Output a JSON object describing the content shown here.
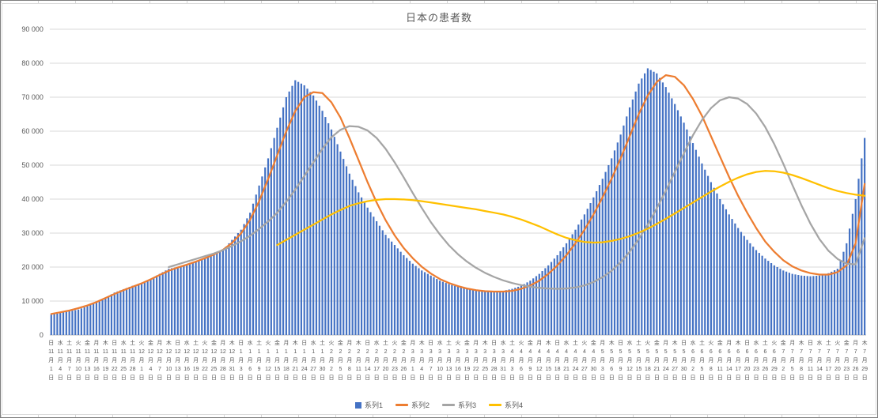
{
  "chart_title": "日本の患者数",
  "chart_data": {
    "type": "bar",
    "title": "日本の患者数",
    "xlabel": "",
    "ylabel": "",
    "grid": true,
    "legend_position": "bottom",
    "x_label_interval_days": 3,
    "y_axis": {
      "min": 0,
      "max": 90000,
      "step": 10000,
      "tick_labels": [
        "0",
        "10 000",
        "20 000",
        "30 000",
        "40 000",
        "50 000",
        "60 000",
        "70 000",
        "80 000",
        "90 000"
      ]
    },
    "categories": [
      [
        "日",
        "11月",
        "1日"
      ],
      [
        "水",
        "11月",
        "4日"
      ],
      [
        "土",
        "11月",
        "7日"
      ],
      [
        "火",
        "11月",
        "10日"
      ],
      [
        "金",
        "11月",
        "13日"
      ],
      [
        "月",
        "11月",
        "16日"
      ],
      [
        "木",
        "11月",
        "19日"
      ],
      [
        "日",
        "11月",
        "22日"
      ],
      [
        "水",
        "11月",
        "25日"
      ],
      [
        "土",
        "11月",
        "28日"
      ],
      [
        "火",
        "12月",
        "1日"
      ],
      [
        "金",
        "12月",
        "4日"
      ],
      [
        "月",
        "12月",
        "7日"
      ],
      [
        "木",
        "12月",
        "10日"
      ],
      [
        "日",
        "12月",
        "13日"
      ],
      [
        "水",
        "12月",
        "16日"
      ],
      [
        "土",
        "12月",
        "19日"
      ],
      [
        "火",
        "12月",
        "22日"
      ],
      [
        "金",
        "12月",
        "25日"
      ],
      [
        "月",
        "12月",
        "28日"
      ],
      [
        "木",
        "12月",
        "31日"
      ],
      [
        "日",
        "1月",
        "3日"
      ],
      [
        "水",
        "1月",
        "6日"
      ],
      [
        "土",
        "1月",
        "9日"
      ],
      [
        "火",
        "1月",
        "12日"
      ],
      [
        "金",
        "1月",
        "15日"
      ],
      [
        "月",
        "1月",
        "18日"
      ],
      [
        "木",
        "1月",
        "21日"
      ],
      [
        "日",
        "1月",
        "24日"
      ],
      [
        "水",
        "1月",
        "27日"
      ],
      [
        "土",
        "1月",
        "30日"
      ],
      [
        "火",
        "2月",
        "2日"
      ],
      [
        "金",
        "2月",
        "5日"
      ],
      [
        "月",
        "2月",
        "8日"
      ],
      [
        "木",
        "2月",
        "11日"
      ],
      [
        "日",
        "2月",
        "14日"
      ],
      [
        "水",
        "2月",
        "17日"
      ],
      [
        "土",
        "2月",
        "20日"
      ],
      [
        "火",
        "2月",
        "23日"
      ],
      [
        "金",
        "2月",
        "26日"
      ],
      [
        "月",
        "3月",
        "1日"
      ],
      [
        "木",
        "3月",
        "4日"
      ],
      [
        "日",
        "3月",
        "7日"
      ],
      [
        "水",
        "3月",
        "10日"
      ],
      [
        "土",
        "3月",
        "13日"
      ],
      [
        "火",
        "3月",
        "16日"
      ],
      [
        "金",
        "3月",
        "19日"
      ],
      [
        "月",
        "3月",
        "22日"
      ],
      [
        "木",
        "3月",
        "25日"
      ],
      [
        "日",
        "3月",
        "28日"
      ],
      [
        "水",
        "3月",
        "31日"
      ],
      [
        "土",
        "4月",
        "3日"
      ],
      [
        "火",
        "4月",
        "6日"
      ],
      [
        "金",
        "4月",
        "9日"
      ],
      [
        "月",
        "4月",
        "12日"
      ],
      [
        "木",
        "4月",
        "15日"
      ],
      [
        "日",
        "4月",
        "18日"
      ],
      [
        "水",
        "4月",
        "21日"
      ],
      [
        "土",
        "4月",
        "24日"
      ],
      [
        "火",
        "4月",
        "27日"
      ],
      [
        "金",
        "4月",
        "30日"
      ],
      [
        "月",
        "5月",
        "3日"
      ],
      [
        "木",
        "5月",
        "6日"
      ],
      [
        "日",
        "5月",
        "9日"
      ],
      [
        "水",
        "5月",
        "12日"
      ],
      [
        "土",
        "5月",
        "15日"
      ],
      [
        "火",
        "5月",
        "18日"
      ],
      [
        "金",
        "5月",
        "21日"
      ],
      [
        "月",
        "5月",
        "24日"
      ],
      [
        "木",
        "5月",
        "27日"
      ],
      [
        "日",
        "5月",
        "30日"
      ],
      [
        "水",
        "6月",
        "2日"
      ],
      [
        "土",
        "6月",
        "5日"
      ],
      [
        "火",
        "6月",
        "8日"
      ],
      [
        "金",
        "6月",
        "11日"
      ],
      [
        "月",
        "6月",
        "14日"
      ],
      [
        "木",
        "6月",
        "17日"
      ],
      [
        "日",
        "6月",
        "20日"
      ],
      [
        "水",
        "6月",
        "23日"
      ],
      [
        "土",
        "6月",
        "26日"
      ],
      [
        "火",
        "6月",
        "29日"
      ],
      [
        "金",
        "7月",
        "2日"
      ],
      [
        "月",
        "7月",
        "5日"
      ],
      [
        "木",
        "7月",
        "8日"
      ],
      [
        "日",
        "7月",
        "11日"
      ],
      [
        "水",
        "7月",
        "14日"
      ],
      [
        "土",
        "7月",
        "17日"
      ],
      [
        "火",
        "7月",
        "20日"
      ],
      [
        "金",
        "7月",
        "23日"
      ],
      [
        "月",
        "7月",
        "26日"
      ],
      [
        "木",
        "7月",
        "29日"
      ]
    ],
    "series": [
      {
        "name": "系列1",
        "render": "bar",
        "color": "#4472c4",
        "values": [
          6000,
          6500,
          7000,
          7500,
          8500,
          9500,
          11000,
          12500,
          13500,
          14500,
          15000,
          16500,
          18000,
          19500,
          20000,
          20500,
          21500,
          22500,
          23500,
          25000,
          28000,
          31000,
          36000,
          44000,
          52000,
          61000,
          70000,
          75000,
          73500,
          70500,
          66000,
          60500,
          54000,
          47500,
          42000,
          37500,
          33500,
          29500,
          26500,
          23500,
          21000,
          19000,
          17500,
          16000,
          15000,
          14200,
          13600,
          13100,
          12800,
          12800,
          13000,
          13600,
          14500,
          16000,
          18000,
          20500,
          23500,
          27000,
          31000,
          35500,
          40500,
          46000,
          52000,
          59000,
          67000,
          74000,
          78500,
          77000,
          73000,
          68000,
          62500,
          56500,
          50500,
          45000,
          40000,
          35500,
          31500,
          28000,
          25000,
          22500,
          20500,
          19000,
          18000,
          17500,
          17300,
          17500,
          18200,
          19500,
          27000,
          40000,
          58000
        ]
      },
      {
        "name": "系列2",
        "render": "line",
        "color": "#ed7d31",
        "values": [
          6200,
          6700,
          7200,
          7900,
          8700,
          9700,
          10900,
          12100,
          13200,
          14200,
          15200,
          16400,
          17700,
          18900,
          19900,
          20700,
          21600,
          22600,
          23700,
          25100,
          27100,
          29900,
          33900,
          39400,
          45900,
          52900,
          59900,
          65900,
          70000,
          71500,
          71200,
          68500,
          64000,
          58000,
          51500,
          45000,
          39000,
          33800,
          29300,
          25600,
          22600,
          20100,
          18100,
          16500,
          15300,
          14400,
          13700,
          13200,
          12900,
          12800,
          12800,
          13000,
          13600,
          14600,
          16000,
          18000,
          20500,
          23500,
          27000,
          31000,
          35500,
          40500,
          46000,
          52000,
          58500,
          65000,
          70500,
          74500,
          76500,
          76000,
          73500,
          69500,
          64500,
          58500,
          52500,
          46500,
          41000,
          36000,
          31500,
          27500,
          24500,
          22000,
          20200,
          19000,
          18200,
          17800,
          17800,
          18500,
          20500,
          27000,
          44500
        ]
      },
      {
        "name": "系列3",
        "render": "line",
        "color": "#a5a5a5",
        "values": [
          null,
          null,
          null,
          null,
          null,
          null,
          null,
          null,
          null,
          null,
          null,
          null,
          null,
          20000,
          20800,
          21600,
          22400,
          23200,
          24000,
          25000,
          26200,
          27600,
          29200,
          31200,
          33400,
          36000,
          39200,
          42800,
          46800,
          50800,
          54800,
          58200,
          60400,
          61500,
          61300,
          60200,
          58000,
          54800,
          50800,
          46400,
          41800,
          37400,
          33200,
          29600,
          26400,
          23800,
          21600,
          19800,
          18300,
          17100,
          16100,
          15300,
          14700,
          14200,
          13900,
          13700,
          13600,
          13700,
          14000,
          14600,
          15600,
          17000,
          18900,
          21400,
          24500,
          28200,
          32500,
          37300,
          42500,
          48000,
          53500,
          58800,
          63300,
          66800,
          69100,
          70000,
          69600,
          68000,
          65200,
          61200,
          56200,
          50400,
          44200,
          38200,
          32800,
          28200,
          24800,
          22400,
          21000,
          20800,
          28500
        ]
      },
      {
        "name": "系列4",
        "render": "line",
        "color": "#ffc000",
        "values": [
          null,
          null,
          null,
          null,
          null,
          null,
          null,
          null,
          null,
          null,
          null,
          null,
          null,
          null,
          null,
          null,
          null,
          null,
          null,
          null,
          null,
          null,
          null,
          null,
          null,
          26500,
          28000,
          29500,
          31000,
          32500,
          34000,
          35500,
          36800,
          38000,
          38800,
          39400,
          39800,
          40000,
          40000,
          39900,
          39700,
          39400,
          39000,
          38600,
          38200,
          37800,
          37400,
          37000,
          36500,
          36000,
          35500,
          34800,
          34000,
          33000,
          32000,
          30800,
          29600,
          28600,
          27900,
          27400,
          27200,
          27300,
          27700,
          28300,
          29100,
          30100,
          31300,
          32700,
          34200,
          35800,
          37400,
          39000,
          40600,
          42200,
          43700,
          45100,
          46300,
          47300,
          48000,
          48300,
          48200,
          47800,
          47100,
          46200,
          45200,
          44200,
          43200,
          42400,
          41800,
          41300,
          41000
        ]
      }
    ]
  }
}
